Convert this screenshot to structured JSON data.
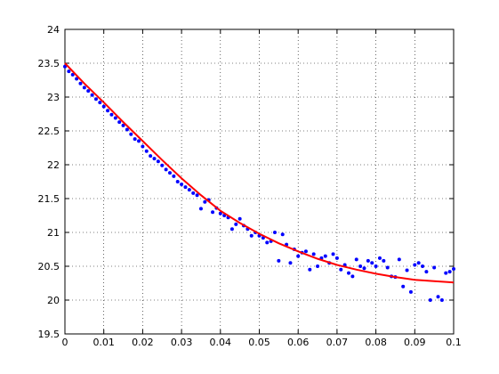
{
  "chart_data": {
    "type": "scatter",
    "xlim": [
      0,
      0.1
    ],
    "xticks": [
      0,
      0.01,
      0.02,
      0.03,
      0.04,
      0.05,
      0.06,
      0.07,
      0.08,
      0.09,
      0.1
    ],
    "ylim": [
      19.5,
      24
    ],
    "yticks": [
      19.5,
      20,
      20.5,
      21,
      21.5,
      22,
      22.5,
      23,
      23.5,
      24
    ],
    "grid": true,
    "series": [
      {
        "type": "scatter",
        "color": "#0000ff",
        "x": [
          0,
          0.001,
          0.002,
          0.003,
          0.004,
          0.005,
          0.006,
          0.007,
          0.008,
          0.009,
          0.01,
          0.011,
          0.012,
          0.013,
          0.014,
          0.015,
          0.016,
          0.017,
          0.018,
          0.019,
          0.02,
          0.021,
          0.022,
          0.023,
          0.024,
          0.025,
          0.026,
          0.027,
          0.028,
          0.029,
          0.03,
          0.031,
          0.032,
          0.033,
          0.034,
          0.035,
          0.036,
          0.037,
          0.038,
          0.039,
          0.04,
          0.041,
          0.042,
          0.043,
          0.044,
          0.045,
          0.046,
          0.047,
          0.048,
          0.049,
          0.05,
          0.051,
          0.052,
          0.053,
          0.054,
          0.055,
          0.056,
          0.057,
          0.058,
          0.059,
          0.06,
          0.061,
          0.062,
          0.063,
          0.064,
          0.065,
          0.066,
          0.067,
          0.068,
          0.069,
          0.07,
          0.071,
          0.072,
          0.073,
          0.074,
          0.075,
          0.076,
          0.077,
          0.078,
          0.079,
          0.08,
          0.081,
          0.082,
          0.083,
          0.084,
          0.085,
          0.086,
          0.087,
          0.088,
          0.089,
          0.09,
          0.091,
          0.092,
          0.093,
          0.094,
          0.095,
          0.096,
          0.097,
          0.098,
          0.099,
          0.1
        ],
        "values": [
          23.45,
          23.38,
          23.33,
          23.27,
          23.2,
          23.14,
          23.09,
          23.03,
          22.97,
          22.92,
          22.86,
          22.8,
          22.74,
          22.69,
          22.63,
          22.58,
          22.52,
          22.45,
          22.38,
          22.35,
          22.27,
          22.2,
          22.13,
          22.09,
          22.05,
          21.99,
          21.93,
          21.88,
          21.83,
          21.75,
          21.71,
          21.67,
          21.63,
          21.58,
          21.55,
          21.35,
          21.45,
          21.48,
          21.3,
          21.36,
          21.28,
          21.25,
          21.22,
          21.05,
          21.12,
          21.2,
          21.1,
          21.05,
          20.95,
          21.0,
          20.95,
          20.92,
          20.85,
          20.87,
          21.0,
          20.58,
          20.97,
          20.82,
          20.55,
          20.75,
          20.65,
          20.7,
          20.72,
          20.45,
          20.68,
          20.5,
          20.62,
          20.65,
          20.55,
          20.68,
          20.62,
          20.45,
          20.52,
          20.4,
          20.35,
          20.6,
          20.5,
          20.47,
          20.58,
          20.55,
          20.5,
          20.62,
          20.58,
          20.48,
          20.35,
          20.34,
          20.6,
          20.2,
          20.44,
          20.12,
          20.52,
          20.55,
          20.5,
          20.42,
          20.0,
          20.48,
          20.05,
          20.0,
          20.4,
          20.42,
          20.46
        ]
      },
      {
        "type": "line",
        "color": "#ff0000",
        "x": [
          0,
          0.005,
          0.01,
          0.015,
          0.02,
          0.025,
          0.03,
          0.035,
          0.04,
          0.045,
          0.05,
          0.055,
          0.06,
          0.065,
          0.07,
          0.075,
          0.08,
          0.085,
          0.09,
          0.095,
          0.1
        ],
        "values": [
          23.5,
          23.2,
          22.92,
          22.63,
          22.35,
          22.07,
          21.8,
          21.55,
          21.32,
          21.14,
          20.98,
          20.84,
          20.72,
          20.61,
          20.52,
          20.45,
          20.39,
          20.34,
          20.3,
          20.28,
          20.26
        ]
      }
    ]
  }
}
